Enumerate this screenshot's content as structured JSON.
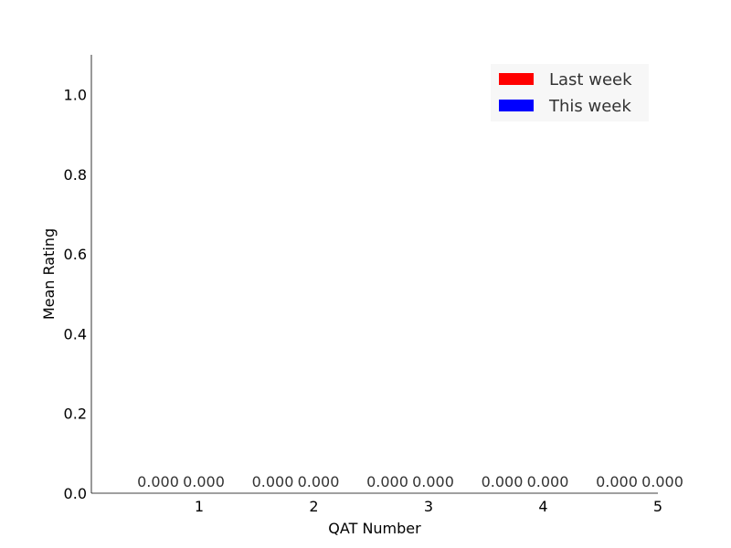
{
  "chart_data": {
    "type": "bar",
    "xlabel": "QAT Number",
    "ylabel": "Mean Rating",
    "categories": [
      "1",
      "2",
      "3",
      "4",
      "5"
    ],
    "x_ticks": [
      "1",
      "2",
      "3",
      "4",
      "5"
    ],
    "y_ticks": [
      "0.0",
      "0.2",
      "0.4",
      "0.6",
      "0.8",
      "1.0"
    ],
    "ylim": [
      0,
      1.1
    ],
    "grid": false,
    "legend_position": "top-right",
    "series": [
      {
        "name": "Last week",
        "color": "#ff0000",
        "values": [
          0,
          0,
          0,
          0,
          0
        ],
        "labels": [
          "0.000",
          "0.000",
          "0.000",
          "0.000",
          "0.000"
        ]
      },
      {
        "name": "This week",
        "color": "#0000ff",
        "values": [
          0,
          0,
          0,
          0,
          0
        ],
        "labels": [
          "0.000",
          "0.000",
          "0.000",
          "0.000",
          "0.000"
        ]
      }
    ]
  }
}
